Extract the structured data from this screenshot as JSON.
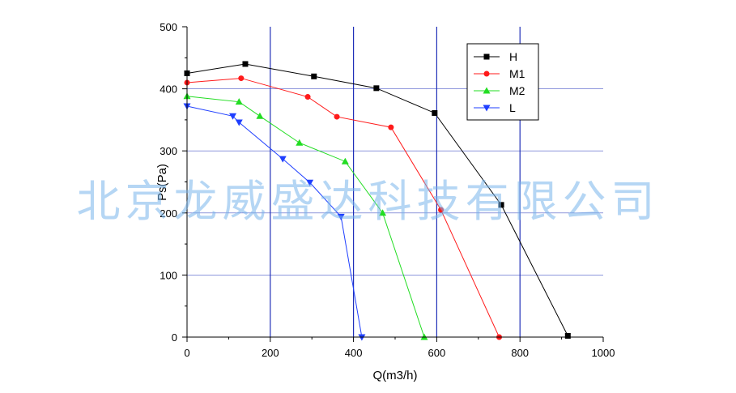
{
  "watermark": "北京龙威盛达科技有限公司",
  "chart_data": {
    "type": "line",
    "xlabel": "Q(m3/h)",
    "ylabel": "Ps(Pa)",
    "xlim": [
      0,
      1000
    ],
    "ylim": [
      0,
      500
    ],
    "xticks": [
      0,
      200,
      400,
      600,
      800,
      1000
    ],
    "yticks": [
      0,
      100,
      200,
      300,
      400,
      500
    ],
    "grid": true,
    "grid_color": "#1f2fb8",
    "legend_position": "top-right",
    "series": [
      {
        "name": "H",
        "color": "#000000",
        "marker": "square",
        "x": [
          0,
          140,
          305,
          455,
          595,
          755,
          915
        ],
        "y": [
          425,
          440,
          420,
          401,
          361,
          213,
          2
        ]
      },
      {
        "name": "M1",
        "color": "#ff1a1a",
        "marker": "circle",
        "x": [
          0,
          130,
          290,
          360,
          490,
          610,
          750
        ],
        "y": [
          410,
          417,
          387,
          355,
          338,
          205,
          0
        ]
      },
      {
        "name": "M2",
        "color": "#22dd22",
        "marker": "triangle-up",
        "x": [
          0,
          125,
          175,
          270,
          380,
          470,
          570
        ],
        "y": [
          388,
          379,
          356,
          313,
          283,
          200,
          0
        ]
      },
      {
        "name": "L",
        "color": "#1f3fff",
        "marker": "triangle-down",
        "x": [
          0,
          110,
          125,
          230,
          295,
          370,
          420
        ],
        "y": [
          372,
          356,
          346,
          287,
          249,
          194,
          0
        ]
      }
    ]
  }
}
